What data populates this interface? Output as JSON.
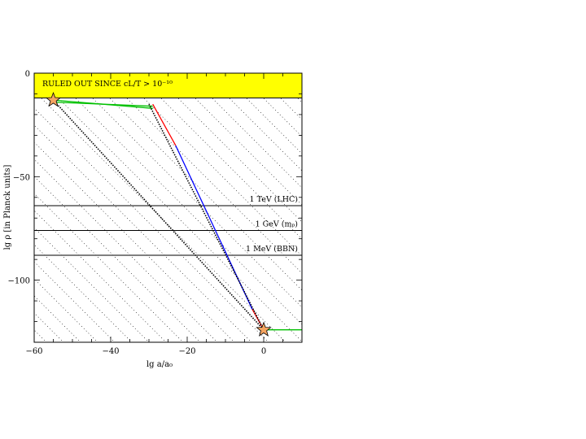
{
  "chart_data": {
    "type": "line",
    "title": "",
    "xlabel": "lg a/a₀",
    "ylabel": "lg ρ [in Planck units]",
    "xlim": [
      -60,
      10
    ],
    "ylim": [
      -130,
      0
    ],
    "xticks": [
      -60,
      -40,
      -20,
      0
    ],
    "yticks": [
      0,
      -50,
      -100
    ],
    "grid": false,
    "excluded_region": {
      "label": "RULED OUT SINCE cL/T > 10⁻¹⁰",
      "y_range": [
        -12,
        0
      ],
      "color": "#ffff00"
    },
    "reference_lines": [
      {
        "label": "1 TeV (LHC)",
        "y": -64
      },
      {
        "label": "1 GeV (mₚ)",
        "y": -76
      },
      {
        "label": "1 MeV (BBN)",
        "y": -88
      }
    ],
    "series": [
      {
        "color": "#00c000",
        "x": [
          -55,
          -29
        ],
        "y": [
          -13,
          -17
        ]
      },
      {
        "color": "#00c000",
        "x": [
          -55,
          -29
        ],
        "y": [
          -14,
          -16
        ]
      },
      {
        "color": "#00c000",
        "x": [
          0,
          10
        ],
        "y": [
          -124,
          -124
        ]
      },
      {
        "color": "#ff0000",
        "x": [
          -29,
          -23
        ],
        "y": [
          -15,
          -35
        ]
      },
      {
        "color": "#ff0000",
        "x": [
          -3,
          0
        ],
        "y": [
          -114,
          -124
        ]
      },
      {
        "color": "#0000ff",
        "x": [
          -23,
          -3
        ],
        "y": [
          -35,
          -114
        ]
      },
      {
        "color": "#000000",
        "style": "dotted",
        "x": [
          -55,
          0
        ],
        "y": [
          -13,
          -124
        ]
      },
      {
        "color": "#000000",
        "style": "dotted",
        "x": [
          -30,
          0
        ],
        "y": [
          -15,
          -124
        ]
      }
    ],
    "markers": [
      {
        "symbol": "star",
        "color": "#f4a460",
        "x": -55,
        "y": -13
      },
      {
        "symbol": "star",
        "color": "#f4a460",
        "x": 0,
        "y": -124
      }
    ]
  }
}
